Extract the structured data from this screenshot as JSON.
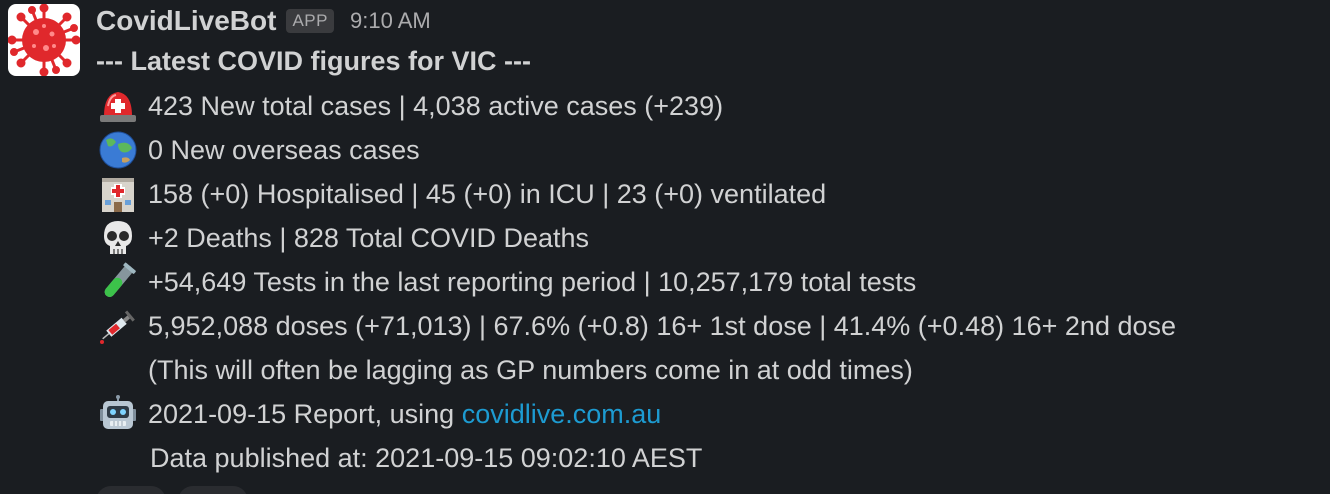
{
  "message": {
    "sender": "CovidLiveBot",
    "badge": "APP",
    "timestamp": "9:10 AM",
    "title": "--- Latest COVID figures for VIC ---",
    "lines": [
      {
        "icon": "ambulance-light-icon",
        "text": "423 New total cases | 4,038 active cases (+239)"
      },
      {
        "icon": "globe-icon",
        "text": "0 New overseas cases"
      },
      {
        "icon": "hospital-icon",
        "text": "158 (+0) Hospitalised | 45 (+0) in ICU | 23 (+0) ventilated"
      },
      {
        "icon": "skull-icon",
        "text": "+2 Deaths | 828 Total COVID Deaths"
      },
      {
        "icon": "test-tube-icon",
        "text": "+54,649 Tests in the last reporting period | 10,257,179 total tests"
      },
      {
        "icon": "syringe-icon",
        "text": "5,952,088 doses (+71,013) | 67.6% (+0.8) 16+ 1st dose | 41.4% (+0.48) 16+ 2nd dose"
      }
    ],
    "note": "(This will often be lagging as GP numbers come in at odd times)",
    "report_prefix": "2021-09-15 Report, using ",
    "report_link": "covidlive.com.au",
    "report_icon": "robot-icon",
    "published": "Data published at: 2021-09-15 09:02:10 AEST"
  },
  "colors": {
    "background": "#1a1d21",
    "text": "#d1d2d3",
    "muted": "#ababad",
    "link": "#1d9bd1",
    "virus_red": "#e0282c"
  }
}
